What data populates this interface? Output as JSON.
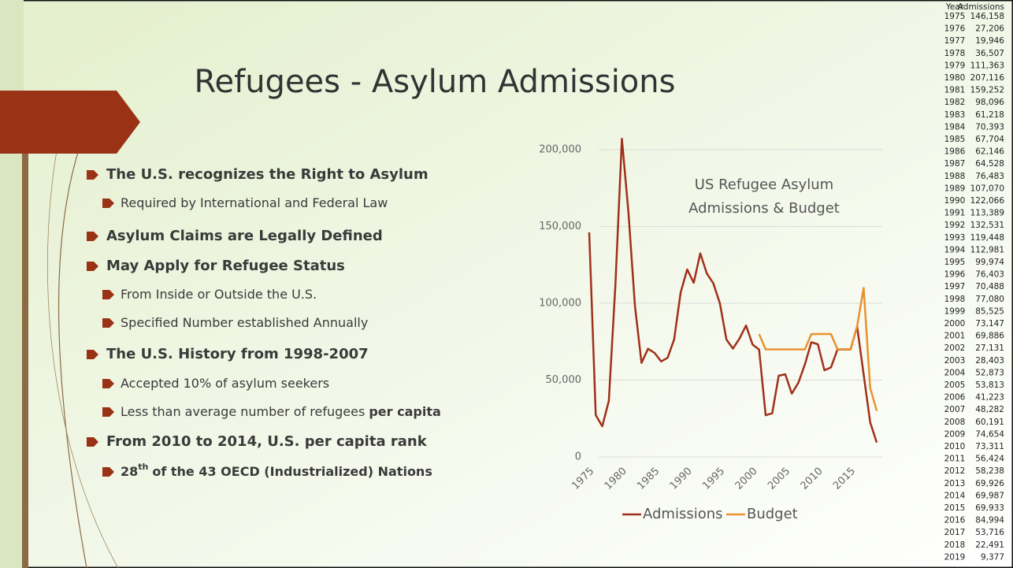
{
  "slide": {
    "title": "Refugees - Asylum Admissions",
    "bullets": [
      {
        "level": 0,
        "text": "The U.S. recognizes the Right to Asylum"
      },
      {
        "level": 1,
        "text": "Required by International and Federal Law"
      },
      {
        "level": 0,
        "text": "Asylum Claims are Legally Defined"
      },
      {
        "level": 0,
        "text": "May Apply for Refugee Status"
      },
      {
        "level": 1,
        "text": "From Inside or Outside the U.S."
      },
      {
        "level": 1,
        "text": "Specified Number established Annually"
      },
      {
        "level": 0,
        "text": "The U.S. History from 1998-2007"
      },
      {
        "level": 1,
        "text": "Accepted 10% of asylum seekers"
      },
      {
        "level": 1,
        "text": "Less than average number of refugees",
        "emphasis": "per capita"
      },
      {
        "level": 0,
        "text": "From 2010 to 2014, U.S. per capita rank"
      },
      {
        "level": 1,
        "ordinal": "28",
        "suffix": "th",
        "text": "of the 43 OECD (Industrialized) Nations"
      }
    ]
  },
  "table": {
    "header": [
      "Year",
      "Admissions"
    ],
    "rows": [
      [
        "1975",
        "146,158"
      ],
      [
        "1976",
        "27,206"
      ],
      [
        "1977",
        "19,946"
      ],
      [
        "1978",
        "36,507"
      ],
      [
        "1979",
        "111,363"
      ],
      [
        "1980",
        "207,116"
      ],
      [
        "1981",
        "159,252"
      ],
      [
        "1982",
        "98,096"
      ],
      [
        "1983",
        "61,218"
      ],
      [
        "1984",
        "70,393"
      ],
      [
        "1985",
        "67,704"
      ],
      [
        "1986",
        "62,146"
      ],
      [
        "1987",
        "64,528"
      ],
      [
        "1988",
        "76,483"
      ],
      [
        "1989",
        "107,070"
      ],
      [
        "1990",
        "122,066"
      ],
      [
        "1991",
        "113,389"
      ],
      [
        "1992",
        "132,531"
      ],
      [
        "1993",
        "119,448"
      ],
      [
        "1994",
        "112,981"
      ],
      [
        "1995",
        "99,974"
      ],
      [
        "1996",
        "76,403"
      ],
      [
        "1997",
        "70,488"
      ],
      [
        "1998",
        "77,080"
      ],
      [
        "1999",
        "85,525"
      ],
      [
        "2000",
        "73,147"
      ],
      [
        "2001",
        "69,886"
      ],
      [
        "2002",
        "27,131"
      ],
      [
        "2003",
        "28,403"
      ],
      [
        "2004",
        "52,873"
      ],
      [
        "2005",
        "53,813"
      ],
      [
        "2006",
        "41,223"
      ],
      [
        "2007",
        "48,282"
      ],
      [
        "2008",
        "60,191"
      ],
      [
        "2009",
        "74,654"
      ],
      [
        "2010",
        "73,311"
      ],
      [
        "2011",
        "56,424"
      ],
      [
        "2012",
        "58,238"
      ],
      [
        "2013",
        "69,926"
      ],
      [
        "2014",
        "69,987"
      ],
      [
        "2015",
        "69,933"
      ],
      [
        "2016",
        "84,994"
      ],
      [
        "2017",
        "53,716"
      ],
      [
        "2018",
        "22,491"
      ],
      [
        "2019",
        "9,377"
      ]
    ]
  },
  "chart_data": {
    "type": "line",
    "title": "US Refugee Asylum Admissions & Budget",
    "x": [
      1975,
      1976,
      1977,
      1978,
      1979,
      1980,
      1981,
      1982,
      1983,
      1984,
      1985,
      1986,
      1987,
      1988,
      1989,
      1990,
      1991,
      1992,
      1993,
      1994,
      1995,
      1996,
      1997,
      1998,
      1999,
      2000,
      2001,
      2002,
      2003,
      2004,
      2005,
      2006,
      2007,
      2008,
      2009,
      2010,
      2011,
      2012,
      2013,
      2014,
      2015,
      2016,
      2017,
      2018,
      2019
    ],
    "series": [
      {
        "name": "Admissions",
        "color": "#a0301a",
        "values": [
          146158,
          27206,
          19946,
          36507,
          111363,
          207116,
          159252,
          98096,
          61218,
          70393,
          67704,
          62146,
          64528,
          76483,
          107070,
          122066,
          113389,
          132531,
          119448,
          112981,
          99974,
          76403,
          70488,
          77080,
          85525,
          73147,
          69886,
          27131,
          28403,
          52873,
          53813,
          41223,
          48282,
          60191,
          74654,
          73311,
          56424,
          58238,
          69926,
          69987,
          69933,
          84994,
          53716,
          22491,
          9377
        ]
      },
      {
        "name": "Budget",
        "color": "#e8922e",
        "values": [
          null,
          null,
          null,
          null,
          null,
          null,
          null,
          null,
          null,
          null,
          null,
          null,
          null,
          null,
          null,
          null,
          null,
          null,
          null,
          null,
          null,
          null,
          null,
          null,
          null,
          null,
          80000,
          70000,
          70000,
          70000,
          70000,
          70000,
          70000,
          70000,
          80000,
          80000,
          80000,
          80000,
          70000,
          70000,
          70000,
          85000,
          110000,
          45000,
          30000
        ]
      }
    ],
    "xlim": [
      1975,
      2019
    ],
    "xticks": [
      1975,
      1980,
      1985,
      1990,
      1995,
      2000,
      2005,
      2010,
      2015
    ],
    "ylim": [
      0,
      215000
    ],
    "yticks": [
      0,
      {
        "value": 50000,
        "label": "50,000"
      },
      {
        "value": 100000,
        "label": "100,000"
      },
      {
        "value": 150000,
        "label": "150,000"
      },
      {
        "value": 200000,
        "label": "200,000"
      }
    ],
    "grid": true,
    "legend": "bottom"
  }
}
